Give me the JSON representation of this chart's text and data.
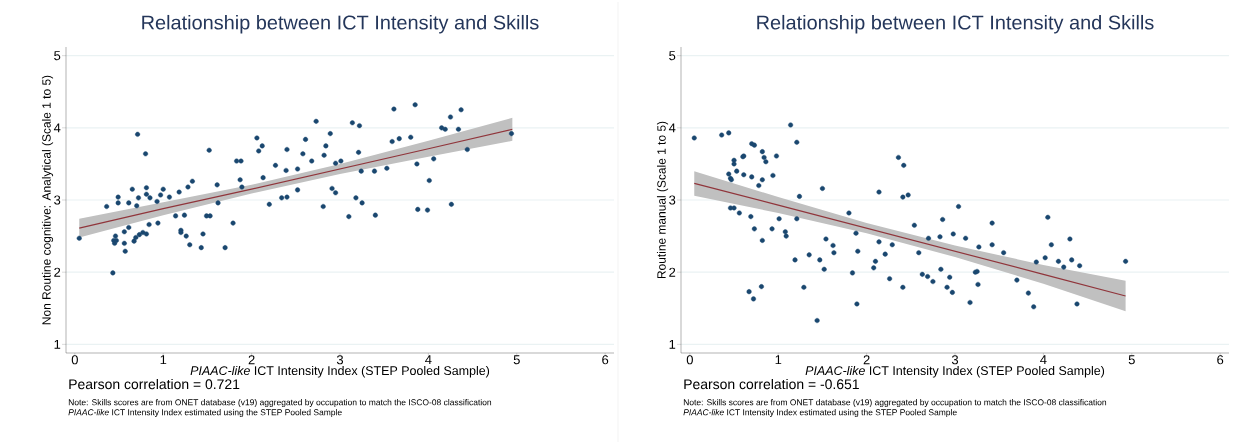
{
  "chart_data": [
    {
      "type": "scatter",
      "title": "Relationship between ICT Intensity and Skills",
      "xlabel": "*PIAAC-like* ICT Intensity Index (STEP Pooled Sample)",
      "ylabel": "Non Routine cognitive: Analytical (Scale 1 to 5)",
      "annotations": [
        "Pearson correlation = 0.721",
        "Note: Skills scores are from ONET database (v19) aggregated by occupation to match the ISCO-08 classification",
        "*PIAAC-like* ICT Intensity Index estimated using the STEP Pooled Sample"
      ],
      "xlim": [
        -0.1,
        6.1
      ],
      "ylim": [
        0.88,
        5.12
      ],
      "xticks": [
        0,
        1,
        2,
        3,
        4,
        5,
        6
      ],
      "yticks": [
        1,
        2,
        3,
        4,
        5
      ],
      "grid": "y",
      "series": [
        {
          "type": "scatter",
          "color": "#1a476f",
          "marker": "circle",
          "x": [
            0.05,
            0.36,
            0.43,
            0.44,
            0.45,
            0.46,
            0.47,
            0.49,
            0.49,
            0.56,
            0.57,
            0.56,
            0.61,
            0.61,
            0.65,
            0.67,
            0.69,
            0.7,
            0.71,
            0.72,
            0.73,
            0.77,
            0.8,
            0.81,
            0.81,
            0.81,
            0.84,
            0.85,
            0.93,
            0.94,
            0.97,
            1.0,
            1.07,
            1.14,
            1.18,
            1.2,
            1.2,
            1.24,
            1.26,
            1.28,
            1.3,
            1.33,
            1.43,
            1.45,
            1.49,
            1.53,
            1.52,
            1.61,
            1.62,
            1.7,
            1.79,
            1.83,
            1.88,
            1.87,
            1.89,
            2.06,
            2.08,
            2.12,
            2.13,
            2.2,
            2.27,
            2.34,
            2.4,
            2.39,
            2.4,
            2.52,
            2.52,
            2.58,
            2.61,
            2.68,
            2.73,
            2.82,
            2.84,
            2.89,
            2.81,
            2.91,
            2.95,
            2.95,
            3.01,
            3.1,
            3.14,
            3.18,
            3.21,
            3.22,
            3.24,
            3.25,
            3.39,
            3.4,
            3.53,
            3.59,
            3.61,
            3.67,
            3.8,
            3.85,
            3.87,
            3.88,
            3.99,
            4.01,
            4.06,
            4.15,
            4.19,
            4.25,
            4.26,
            4.34,
            4.37,
            4.44,
            4.94
          ],
          "values": [
            2.47,
            2.91,
            1.99,
            2.44,
            2.4,
            2.5,
            2.44,
            3.04,
            2.96,
            2.56,
            2.29,
            2.4,
            2.62,
            2.96,
            3.15,
            2.43,
            2.48,
            2.92,
            3.91,
            3.03,
            2.52,
            2.55,
            3.64,
            3.17,
            2.53,
            3.08,
            2.66,
            3.03,
            2.98,
            2.68,
            3.07,
            3.15,
            3.04,
            2.78,
            3.11,
            2.58,
            2.55,
            2.79,
            2.5,
            3.18,
            2.38,
            3.26,
            2.34,
            2.53,
            2.78,
            2.78,
            3.69,
            3.21,
            2.96,
            2.34,
            2.68,
            3.54,
            3.54,
            3.28,
            3.18,
            3.86,
            3.68,
            3.75,
            3.31,
            2.94,
            3.48,
            3.03,
            3.04,
            3.41,
            3.7,
            3.43,
            3.14,
            3.64,
            3.84,
            3.54,
            4.09,
            3.62,
            3.75,
            3.92,
            2.91,
            3.16,
            3.1,
            3.51,
            3.54,
            2.77,
            4.07,
            3.03,
            3.66,
            4.03,
            3.4,
            2.96,
            3.4,
            2.79,
            3.44,
            3.81,
            4.26,
            3.85,
            3.87,
            4.32,
            3.5,
            2.87,
            2.86,
            3.27,
            3.57,
            4.0,
            3.98,
            4.15,
            2.94,
            3.98,
            4.25,
            3.7,
            3.92
          ]
        },
        {
          "type": "line",
          "color": "#90353b",
          "marker": "none",
          "x": [
            0.05,
            1,
            2,
            3,
            4,
            4.95
          ],
          "values": [
            2.61,
            2.88,
            3.15,
            3.43,
            3.71,
            3.98
          ],
          "lower": [
            2.48,
            2.79,
            3.09,
            3.36,
            3.6,
            3.82
          ],
          "upper": [
            2.74,
            2.97,
            3.21,
            3.5,
            3.82,
            4.14
          ]
        }
      ]
    },
    {
      "type": "scatter",
      "title": "Relationship between ICT Intensity and Skills",
      "xlabel": "*PIAAC-like* ICT Intensity Index (STEP Pooled Sample)",
      "ylabel": "Routine manual (Scale 1 to 5)",
      "annotations": [
        "Pearson correlation = -0.651",
        "Note: Skills scores are from ONET database (v19) aggregated by occupation to match the ISCO-08 classification",
        "*PIAAC-like* ICT Intensity Index estimated using the STEP Pooled Sample"
      ],
      "xlim": [
        -0.1,
        6.1
      ],
      "ylim": [
        0.88,
        5.12
      ],
      "xticks": [
        0,
        1,
        2,
        3,
        4,
        5,
        6
      ],
      "yticks": [
        1,
        2,
        3,
        4,
        5
      ],
      "grid": "y",
      "series": [
        {
          "type": "scatter",
          "color": "#1a476f",
          "marker": "circle",
          "x": [
            0.05,
            0.36,
            0.44,
            0.7,
            0.73,
            0.5,
            0.5,
            0.6,
            0.61,
            0.82,
            0.84,
            0.86,
            0.98,
            1.14,
            1.21,
            0.44,
            0.46,
            0.47,
            0.53,
            0.61,
            0.7,
            0.78,
            0.82,
            0.94,
            1.24,
            0.46,
            0.5,
            0.56,
            0.69,
            0.73,
            0.82,
            0.93,
            1.01,
            1.08,
            1.09,
            1.21,
            0.67,
            0.72,
            0.81,
            1.19,
            1.29,
            1.35,
            1.44,
            1.47,
            1.5,
            1.52,
            1.54,
            1.62,
            1.63,
            1.8,
            1.84,
            1.88,
            1.89,
            1.9,
            2.08,
            2.1,
            2.14,
            2.14,
            2.21,
            2.26,
            2.29,
            2.36,
            2.41,
            2.41,
            2.42,
            2.47,
            2.54,
            2.59,
            2.63,
            2.69,
            2.7,
            2.75,
            2.83,
            2.84,
            2.86,
            2.91,
            2.94,
            2.97,
            2.98,
            3.04,
            3.12,
            3.17,
            3.23,
            3.25,
            3.26,
            3.27,
            3.42,
            3.42,
            3.55,
            3.7,
            3.83,
            3.89,
            3.92,
            4.02,
            4.05,
            4.09,
            4.17,
            4.23,
            4.3,
            4.32,
            4.38,
            4.41,
            4.93
          ],
          "values": [
            3.86,
            3.9,
            3.93,
            3.78,
            3.76,
            3.5,
            3.55,
            3.6,
            3.61,
            3.67,
            3.59,
            3.53,
            3.61,
            4.04,
            3.8,
            3.36,
            3.3,
            3.28,
            3.4,
            3.35,
            3.32,
            3.2,
            3.28,
            3.34,
            3.05,
            2.89,
            2.89,
            2.82,
            2.77,
            2.6,
            2.44,
            2.6,
            2.74,
            2.56,
            2.5,
            2.74,
            1.73,
            1.63,
            1.8,
            2.17,
            1.79,
            2.24,
            1.33,
            2.17,
            3.16,
            2.04,
            2.46,
            2.37,
            2.27,
            2.82,
            1.99,
            2.54,
            1.56,
            2.29,
            2.06,
            2.15,
            2.42,
            3.11,
            2.25,
            1.91,
            2.38,
            3.59,
            1.79,
            3.04,
            3.48,
            3.07,
            2.65,
            2.27,
            1.97,
            1.94,
            2.47,
            1.87,
            2.49,
            2.04,
            2.73,
            1.79,
            1.93,
            1.72,
            2.53,
            2.91,
            2.47,
            1.58,
            2.0,
            2.01,
            1.83,
            2.35,
            2.68,
            2.38,
            2.27,
            1.89,
            1.71,
            1.52,
            2.14,
            2.2,
            2.76,
            2.38,
            2.15,
            2.07,
            2.46,
            2.17,
            1.56,
            2.09,
            2.15
          ]
        },
        {
          "type": "line",
          "color": "#90353b",
          "marker": "none",
          "x": [
            0.05,
            1,
            2,
            3,
            4,
            4.93
          ],
          "values": [
            3.23,
            2.93,
            2.61,
            2.29,
            1.97,
            1.67
          ],
          "lower": [
            3.06,
            2.82,
            2.54,
            2.21,
            1.84,
            1.46
          ],
          "upper": [
            3.4,
            3.04,
            2.68,
            2.37,
            2.1,
            1.88
          ]
        }
      ]
    }
  ]
}
